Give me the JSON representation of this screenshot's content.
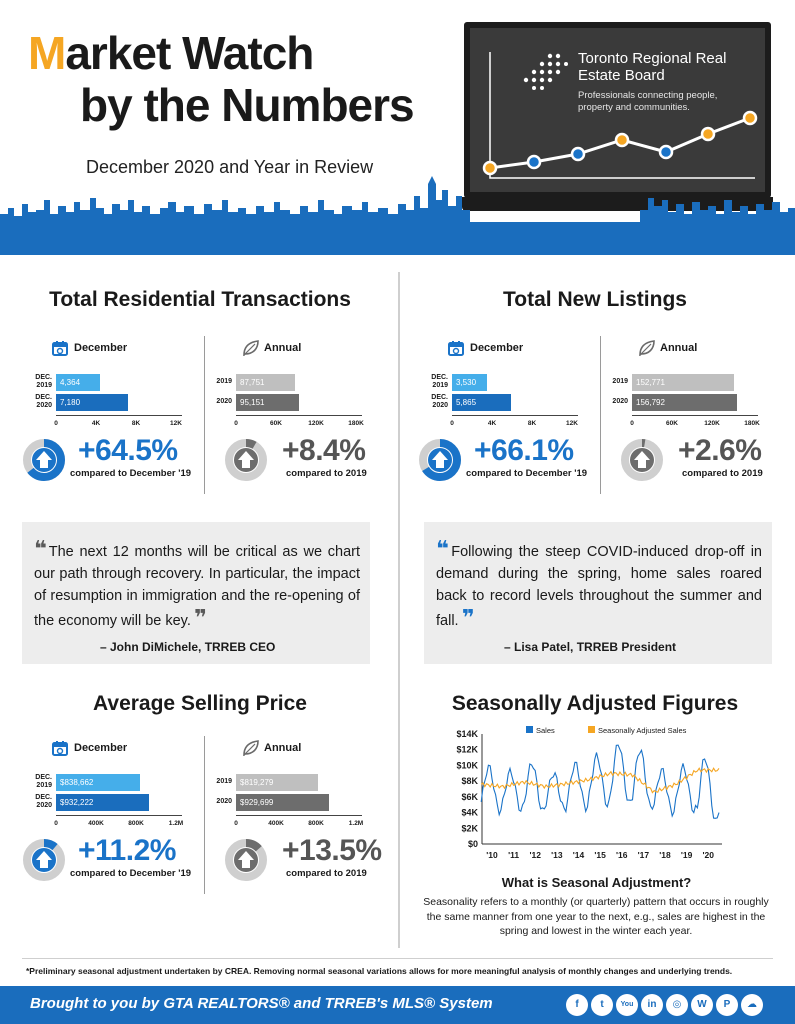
{
  "header": {
    "title_m": "M",
    "title_rest": "arket Watch",
    "title_line2": "by the Numbers",
    "subtitle": "December 2020 and Year in Review"
  },
  "brand": {
    "name": "Toronto Regional Real Estate Board",
    "tagline": "Professionals connecting people, property and communities.",
    "logo_icon": "dot-grid-logo",
    "colors": {
      "blue": "#1a6dbd",
      "orange": "#f5a623",
      "dark": "#3a3a3a"
    }
  },
  "transactions": {
    "title": "Total Residential Transactions",
    "december": {
      "label": "December",
      "icon": "calendar-icon",
      "rows": [
        {
          "label": "DEC. 2019",
          "value": 4364,
          "text": "4,364"
        },
        {
          "label": "DEC. 2020",
          "value": 7180,
          "text": "7,180"
        }
      ],
      "ticks": [
        "0",
        "4K",
        "8K",
        "12K"
      ],
      "max": 12000,
      "pct": "+64.5%",
      "fraction": 0.645,
      "compare": "compared to December '19"
    },
    "annual": {
      "label": "Annual",
      "icon": "leaf-icon",
      "rows": [
        {
          "label": "2019",
          "value": 87751,
          "text": "87,751"
        },
        {
          "label": "2020",
          "value": 95151,
          "text": "95,151"
        }
      ],
      "ticks": [
        "0",
        "60K",
        "120K",
        "180K"
      ],
      "max": 180000,
      "pct": "+8.4%",
      "fraction": 0.084,
      "compare": "compared to 2019"
    }
  },
  "listings": {
    "title": "Total New Listings",
    "december": {
      "label": "December",
      "icon": "calendar-icon",
      "rows": [
        {
          "label": "DEC. 2019",
          "value": 3530,
          "text": "3,530"
        },
        {
          "label": "DEC. 2020",
          "value": 5865,
          "text": "5,865"
        }
      ],
      "ticks": [
        "0",
        "4K",
        "8K",
        "12K"
      ],
      "max": 12000,
      "pct": "+66.1%",
      "fraction": 0.661,
      "compare": "compared to December '19"
    },
    "annual": {
      "label": "Annual",
      "icon": "leaf-icon",
      "rows": [
        {
          "label": "2019",
          "value": 152771,
          "text": "152,771"
        },
        {
          "label": "2020",
          "value": 156792,
          "text": "156,792"
        }
      ],
      "ticks": [
        "0",
        "60K",
        "120K",
        "180K"
      ],
      "max": 180000,
      "pct": "+2.6%",
      "fraction": 0.026,
      "compare": "compared to 2019"
    }
  },
  "quotes": [
    {
      "text": "The next 12 months will be critical as we chart our path through recovery. In particular, the impact of resumption in immigration and the re-opening of the economy will be key.",
      "author": "– John DiMichele, TRREB CEO"
    },
    {
      "text": "Following the steep COVID-induced drop-off in demand during the spring, home sales roared back to record levels throughout the summer and fall.",
      "author": "– Lisa Patel, TRREB President"
    }
  ],
  "price": {
    "title": "Average Selling Price",
    "december": {
      "label": "December",
      "icon": "calendar-icon",
      "rows": [
        {
          "label": "DEC. 2019",
          "value": 838662,
          "text": "$838,662"
        },
        {
          "label": "DEC. 2020",
          "value": 932222,
          "text": "$932,222"
        }
      ],
      "ticks": [
        "0",
        "400K",
        "800K",
        "1.2M"
      ],
      "max": 1200000,
      "pct": "+11.2%",
      "fraction": 0.112,
      "compare": "compared to December '19"
    },
    "annual": {
      "label": "Annual",
      "icon": "leaf-icon",
      "rows": [
        {
          "label": "2019",
          "value": 819279,
          "text": "$819,279"
        },
        {
          "label": "2020",
          "value": 929699,
          "text": "$929,699"
        }
      ],
      "ticks": [
        "0",
        "400K",
        "800K",
        "1.2M"
      ],
      "max": 1200000,
      "pct": "+13.5%",
      "fraction": 0.135,
      "compare": "compared to 2019"
    }
  },
  "seasonal": {
    "title": "Seasonally Adjusted Figures",
    "what_title": "What is Seasonal Adjustment?",
    "what_text": "Seasonality refers to a monthly (or quarterly) pattern that occurs in roughly the same manner from one year to the next, e.g., sales are highest in the spring and lowest in the winter each year."
  },
  "chart_data": {
    "type": "line",
    "title": "",
    "xlabel": "",
    "ylabel": "",
    "x_ticks": [
      "'10",
      "'11",
      "'12",
      "'13",
      "'14",
      "'15",
      "'16",
      "'17",
      "'18",
      "'19",
      "'20"
    ],
    "y_ticks": [
      "$0",
      "$2K",
      "$4K",
      "$6K",
      "$8K",
      "$10K",
      "$12K",
      "$14K"
    ],
    "ylim": [
      0,
      14000
    ],
    "legend": "top",
    "series": [
      {
        "name": "Sales",
        "color": "#1a73c8",
        "peaks": [
          9800,
          9200,
          10300,
          9000,
          10200,
          11200,
          12800,
          12000,
          9400,
          9800,
          11000
        ],
        "troughs": [
          4200,
          4300,
          4100,
          4400,
          4600,
          4900,
          5100,
          4600,
          4000,
          4200,
          2800
        ]
      },
      {
        "name": "Seasonally Adjusted Sales",
        "color": "#f5a623",
        "values": [
          7600,
          7300,
          7900,
          7300,
          7700,
          8200,
          9000,
          8800,
          6600,
          7600,
          9400
        ]
      }
    ]
  },
  "footnote": "*Preliminary seasonal adjustment undertaken by CREA. Removing normal seasonal variations allows for more meaningful analysis of monthly changes and underlying trends.",
  "footer": {
    "text": "Brought to you by GTA REALTORS® and TRREB's MLS® System",
    "social": [
      {
        "icon": "facebook-icon",
        "glyph": "f"
      },
      {
        "icon": "twitter-icon",
        "glyph": "t"
      },
      {
        "icon": "youtube-icon",
        "glyph": "You"
      },
      {
        "icon": "linkedin-icon",
        "glyph": "in"
      },
      {
        "icon": "instagram-icon",
        "glyph": "◎"
      },
      {
        "icon": "wordpress-icon",
        "glyph": "W"
      },
      {
        "icon": "pinterest-icon",
        "glyph": "P"
      },
      {
        "icon": "soundcloud-icon",
        "glyph": "☁"
      }
    ]
  }
}
